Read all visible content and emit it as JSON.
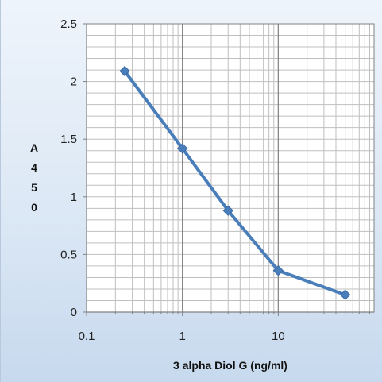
{
  "chart_data": {
    "type": "line",
    "xscale": "log",
    "xlabel": "3 alpha Diol G (ng/ml)",
    "ylabel": [
      "A",
      "4",
      "5",
      "0"
    ],
    "xlim": [
      0.1,
      100
    ],
    "ylim": [
      0,
      2.5
    ],
    "xticks": [
      {
        "value": 0.1,
        "label": "0.1"
      },
      {
        "value": 1,
        "label": "1"
      },
      {
        "value": 10,
        "label": "10"
      }
    ],
    "yticks": [
      {
        "value": 0,
        "label": "0"
      },
      {
        "value": 0.5,
        "label": "0.5"
      },
      {
        "value": 1,
        "label": "1"
      },
      {
        "value": 1.5,
        "label": "1.5"
      },
      {
        "value": 2,
        "label": "2"
      },
      {
        "value": 2.5,
        "label": "2.5"
      }
    ],
    "grid": true,
    "series": [
      {
        "x": [
          0.25,
          1,
          3,
          10,
          50
        ],
        "y": [
          2.09,
          1.42,
          0.88,
          0.36,
          0.15
        ],
        "color": "#4a7ebb",
        "marker": "diamond"
      }
    ],
    "colors": {
      "background_top": "#eef4fb",
      "background_bottom": "#c7d9ee",
      "plot_area": "#ffffff",
      "grid": "#bfbfbf",
      "axis": "#808080"
    }
  }
}
